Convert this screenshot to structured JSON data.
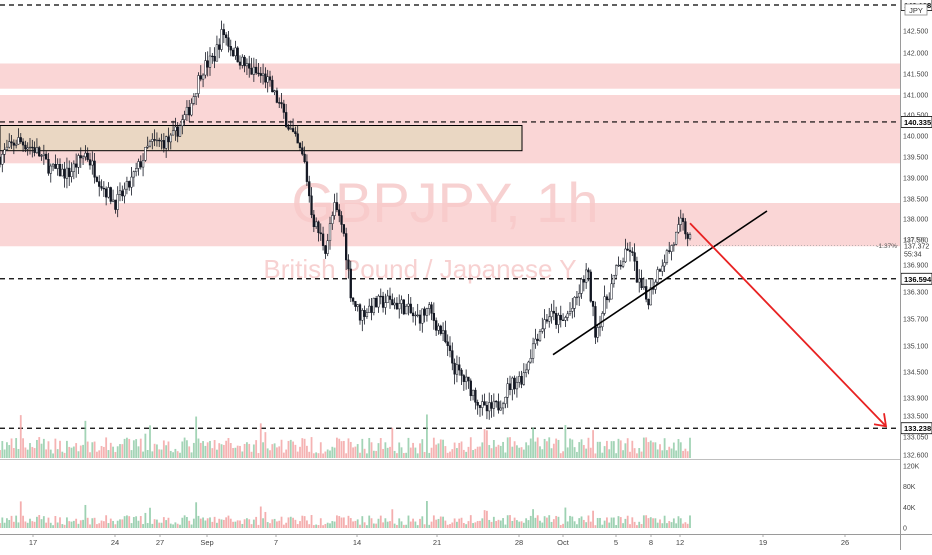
{
  "watermark": {
    "symbol": "GBPJPY, 1h",
    "description": "British Pound / Japanese Y"
  },
  "currency_badge": "JPY",
  "colors": {
    "candle": "#131722",
    "zone_red": "#f8c8c8",
    "zone_tan": "#ead7c3",
    "volume_up": "#8cc9a4",
    "volume_down": "#f2a0a0",
    "arrow": "#e82222",
    "trendline": "#000000",
    "watermark": "#f5c2c2",
    "axis_text": "#444444",
    "price_flag_bg": "#ffffff"
  },
  "chart_data": [
    {
      "type": "candlestick",
      "title": "",
      "price_axis": {
        "min": 132.6,
        "max": 142.9,
        "ticks": [
          "143.1",
          "142.500",
          "142.000",
          "141.500",
          "141.000",
          "140.500",
          "140.000",
          "139.500",
          "139.000",
          "138.500",
          "138.000",
          "137.500",
          "136.900",
          "136.300",
          "135.700",
          "135.100",
          "134.500",
          "133.900",
          "133.500",
          "133.050",
          "132.600"
        ]
      },
      "time_axis": {
        "ticks": [
          "17",
          "24",
          "27",
          "Sep",
          "7",
          "14",
          "21",
          "28",
          "Oct",
          "5",
          "8",
          "12",
          "19",
          "26"
        ]
      },
      "horizontal_levels": [
        {
          "price": 143.1,
          "label": "143.128",
          "style": "dashed"
        },
        {
          "price": 140.335,
          "label": "140.335",
          "style": "dashed"
        },
        {
          "price": 136.594,
          "label": "136.594",
          "style": "dashed"
        },
        {
          "price": 133.238,
          "label": "133.238",
          "style": "dashed"
        }
      ],
      "last_price": {
        "price": 137.372,
        "label": "137.372",
        "change": "-1.37%",
        "countdown": "55:34",
        "near_label": "137.500"
      },
      "zones": [
        {
          "type": "resistance",
          "from": 141.15,
          "to": 141.75,
          "color": "red"
        },
        {
          "type": "resistance",
          "from": 139.35,
          "to": 141.0,
          "color": "red"
        },
        {
          "type": "resistance",
          "from": 137.35,
          "to": 138.4,
          "color": "red"
        },
        {
          "type": "supply_box",
          "from": 139.65,
          "to": 140.25,
          "color": "tan",
          "x_from": "Aug 14",
          "x_to": "Sep 28"
        }
      ],
      "drawings": [
        {
          "type": "trendline",
          "from": {
            "date": "Sep 29",
            "price": 134.9
          },
          "to": {
            "date": "Oct 20",
            "price": 138.2
          }
        },
        {
          "type": "arrow",
          "from": {
            "date": "Oct 12",
            "price": 137.9
          },
          "to": {
            "date": "Oct 30",
            "price": 133.238
          }
        }
      ],
      "price_path": [
        {
          "x": 0,
          "y": 139.5
        },
        {
          "x": 4,
          "y": 139.9
        },
        {
          "x": 8,
          "y": 139.7
        },
        {
          "x": 12,
          "y": 139.2
        },
        {
          "x": 16,
          "y": 139.1
        },
        {
          "x": 20,
          "y": 139.6
        },
        {
          "x": 24,
          "y": 138.8
        },
        {
          "x": 27,
          "y": 138.4
        },
        {
          "x": 30,
          "y": 138.8
        },
        {
          "x": 35,
          "y": 139.8
        },
        {
          "x": 40,
          "y": 139.9
        },
        {
          "x": 44,
          "y": 140.6
        },
        {
          "x": 47,
          "y": 141.6
        },
        {
          "x": 50,
          "y": 141.9
        },
        {
          "x": 52,
          "y": 142.5
        },
        {
          "x": 54,
          "y": 142.1
        },
        {
          "x": 58,
          "y": 141.6
        },
        {
          "x": 62,
          "y": 141.4
        },
        {
          "x": 65,
          "y": 140.8
        },
        {
          "x": 68,
          "y": 140.1
        },
        {
          "x": 71,
          "y": 139.4
        },
        {
          "x": 73,
          "y": 138.0
        },
        {
          "x": 76,
          "y": 137.3
        },
        {
          "x": 78,
          "y": 138.3
        },
        {
          "x": 80,
          "y": 137.8
        },
        {
          "x": 82,
          "y": 136.2
        },
        {
          "x": 84,
          "y": 135.8
        },
        {
          "x": 87,
          "y": 136.0
        },
        {
          "x": 90,
          "y": 136.1
        },
        {
          "x": 94,
          "y": 136.0
        },
        {
          "x": 97,
          "y": 135.7
        },
        {
          "x": 100,
          "y": 135.9
        },
        {
          "x": 103,
          "y": 135.4
        },
        {
          "x": 106,
          "y": 134.6
        },
        {
          "x": 110,
          "y": 134.1
        },
        {
          "x": 113,
          "y": 133.6
        },
        {
          "x": 116,
          "y": 133.7
        },
        {
          "x": 119,
          "y": 134.2
        },
        {
          "x": 122,
          "y": 134.4
        },
        {
          "x": 125,
          "y": 135.3
        },
        {
          "x": 128,
          "y": 135.8
        },
        {
          "x": 131,
          "y": 135.6
        },
        {
          "x": 134,
          "y": 136.0
        },
        {
          "x": 137,
          "y": 136.8
        },
        {
          "x": 139,
          "y": 135.4
        },
        {
          "x": 141,
          "y": 136.0
        },
        {
          "x": 144,
          "y": 136.8
        },
        {
          "x": 147,
          "y": 137.3
        },
        {
          "x": 149,
          "y": 136.5
        },
        {
          "x": 151,
          "y": 136.1
        },
        {
          "x": 154,
          "y": 136.9
        },
        {
          "x": 157,
          "y": 137.4
        },
        {
          "x": 159,
          "y": 137.9
        },
        {
          "x": 161,
          "y": 137.5
        }
      ]
    },
    {
      "type": "bar",
      "title": "",
      "volume_axis": {
        "min": 0,
        "max": 120000,
        "ticks": [
          "120K",
          "80K",
          "40K",
          "0"
        ]
      }
    }
  ]
}
